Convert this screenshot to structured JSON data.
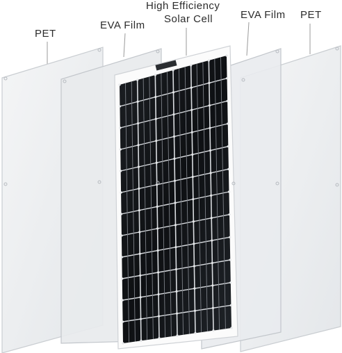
{
  "labels": {
    "pet_left": "PET",
    "eva_left": "EVA Film",
    "cell_line1": "High Efficiency",
    "cell_line2": "Solar Cell",
    "eva_right": "EVA Film",
    "pet_right": "PET"
  },
  "colors": {
    "sheet_fill": "#eef0f2",
    "sheet_stroke": "#c9cdd1",
    "cell_dark": "#121417",
    "busbar": "#7c8087",
    "leader": "#9a9a9a"
  },
  "panel": {
    "columns": 6,
    "rows": 12
  }
}
